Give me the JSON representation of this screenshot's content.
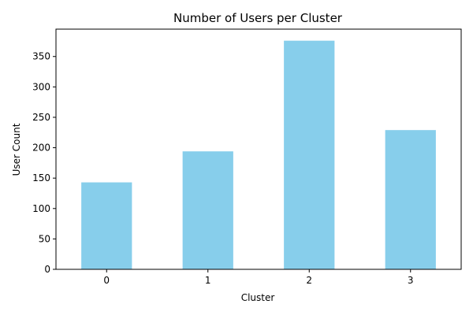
{
  "chart_data": {
    "type": "bar",
    "title": "Number of Users per Cluster",
    "xlabel": "Cluster",
    "ylabel": "User Count",
    "categories": [
      "0",
      "1",
      "2",
      "3"
    ],
    "values": [
      143,
      194,
      376,
      229
    ],
    "ylim": [
      0,
      395
    ],
    "yticks": [
      0,
      50,
      100,
      150,
      200,
      250,
      300,
      350
    ],
    "grid": false,
    "bar_color": "#87CEEB"
  }
}
